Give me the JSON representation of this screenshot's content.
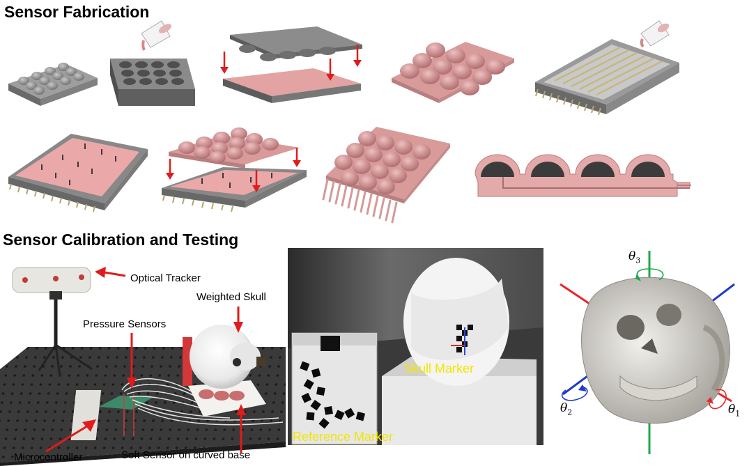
{
  "sections": {
    "fabrication_title": "Sensor Fabrication",
    "calibration_title": "Sensor Calibration and Testing"
  },
  "setup_labels": {
    "optical_tracker": "Optical Tracker",
    "weighted_skull": "Weighted Skull",
    "pressure_sensors": "Pressure Sensors",
    "microcontroller": "Microcontroller",
    "soft_sensor": "Soft Sensor on curved base"
  },
  "photo_labels": {
    "skull_marker": "Skull Marker",
    "reference_marker": "Reference Marker"
  },
  "axes": {
    "theta1": {
      "symbol": "θ",
      "sub": "1",
      "color": "#e8262a"
    },
    "theta2": {
      "symbol": "θ",
      "sub": "2",
      "color": "#1f3bd1"
    },
    "theta3": {
      "symbol": "θ",
      "sub": "3",
      "color": "#1fa84a"
    }
  },
  "colors": {
    "mold_gray": "#8a8a8a",
    "silicone_pink": "#d99a9a",
    "arrow_red": "#e11b1b",
    "label_yellow": "#f2e600"
  }
}
